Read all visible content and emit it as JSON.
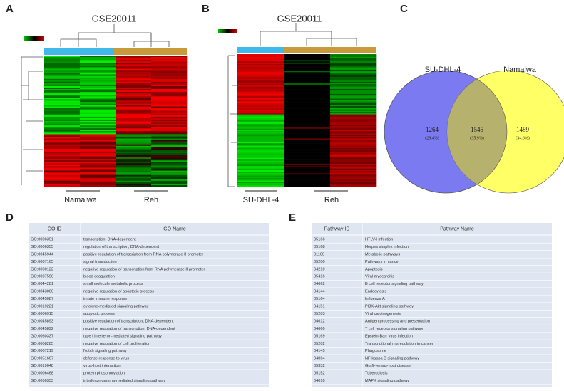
{
  "panel_a": {
    "letter": "A",
    "title": "GSE20011",
    "groups": [
      "Namalwa",
      "Reh"
    ]
  },
  "panel_b": {
    "letter": "B",
    "title": "GSE20011",
    "groups": [
      "SU-DHL-4",
      "Reh"
    ]
  },
  "panel_c": {
    "letter": "C",
    "sets": [
      "SU-DHL-4",
      "Namalwa"
    ],
    "regions": [
      {
        "count": 1264,
        "percent": "(29.4%)"
      },
      {
        "count": 1545,
        "percent": "(35.9%)"
      },
      {
        "count": 1489,
        "percent": "(34.6%)"
      }
    ]
  },
  "panel_d": {
    "letter": "D",
    "header": [
      "GO ID",
      "GO Name"
    ],
    "rows": [
      [
        "GO:0006351",
        "transcription, DNA-dependent"
      ],
      [
        "GO:0006355",
        "regulation of transcription, DNA-dependent"
      ],
      [
        "GO:0045944",
        "positive regulation of transcription from RNA polymerase II promoter"
      ],
      [
        "GO:0007165",
        "signal transduction"
      ],
      [
        "GO:0000122",
        "negative regulation of transcription from RNA polymerase II promoter"
      ],
      [
        "GO:0007596",
        "blood coagulation"
      ],
      [
        "GO:0044281",
        "small molecule metabolic process"
      ],
      [
        "GO:0043066",
        "negative regulation of apoptotic process"
      ],
      [
        "GO:0045087",
        "innate immune response"
      ],
      [
        "GO:0019221",
        "cytokine-mediated signaling pathway"
      ],
      [
        "GO:0006915",
        "apoptotic process"
      ],
      [
        "GO:0045893",
        "positive regulation of transcription, DNA-dependent"
      ],
      [
        "GO:0045892",
        "negative regulation of transcription, DNA-dependent"
      ],
      [
        "GO:0060337",
        "type I interferon-mediated signaling pathway"
      ],
      [
        "GO:0008285",
        "negative regulation of cell proliferation"
      ],
      [
        "GO:0007219",
        "Notch signaling pathway"
      ],
      [
        "GO:0051607",
        "defense response to virus"
      ],
      [
        "GO:0019048",
        "virus-host interaction"
      ],
      [
        "GO:0006468",
        "protein phosphorylation"
      ],
      [
        "GO:0060333",
        "interferon-gamma-mediated signaling pathway"
      ]
    ]
  },
  "panel_e": {
    "letter": "E",
    "header": [
      "Pathway ID",
      "Pathway Name"
    ],
    "rows": [
      [
        "05166",
        "HTLV-I infection"
      ],
      [
        "05168",
        "Herpes simplex infection"
      ],
      [
        "01100",
        "Metabolic pathways"
      ],
      [
        "05200",
        "Pathways in cancer"
      ],
      [
        "04210",
        "Apoptosis"
      ],
      [
        "05416",
        "Viral myocarditis"
      ],
      [
        "04662",
        "B cell receptor signaling pathway"
      ],
      [
        "04144",
        "Endocytosis"
      ],
      [
        "05164",
        "Influenza A"
      ],
      [
        "04151",
        "PI3K-Akt signaling pathway"
      ],
      [
        "05203",
        "Viral carcinogenesis"
      ],
      [
        "04612",
        "Antigen processing and presentation"
      ],
      [
        "04660",
        "T cell receptor signaling pathway"
      ],
      [
        "05169",
        "Epstein-Barr virus infection"
      ],
      [
        "05202",
        "Transcriptional misregulation in cancer"
      ],
      [
        "04145",
        "Phagosome"
      ],
      [
        "04064",
        "NF-kappa B signaling pathway"
      ],
      [
        "05332",
        "Graft-versus-host disease"
      ],
      [
        "05152",
        "Tuberculosis"
      ],
      [
        "04010",
        "MAPK signaling pathway"
      ]
    ]
  }
}
